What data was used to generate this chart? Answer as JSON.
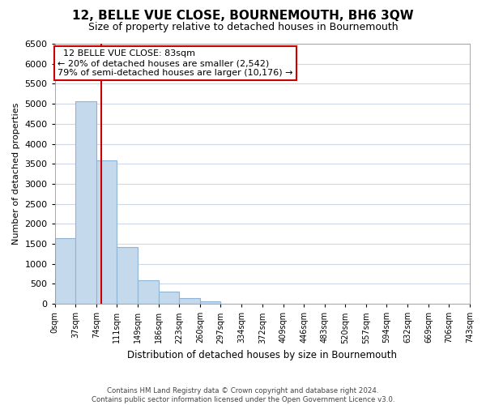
{
  "title": "12, BELLE VUE CLOSE, BOURNEMOUTH, BH6 3QW",
  "subtitle": "Size of property relative to detached houses in Bournemouth",
  "xlabel": "Distribution of detached houses by size in Bournemouth",
  "ylabel": "Number of detached properties",
  "footer_line1": "Contains HM Land Registry data © Crown copyright and database right 2024.",
  "footer_line2": "Contains public sector information licensed under the Open Government Licence v3.0.",
  "bar_edges": [
    0,
    37,
    74,
    111,
    149,
    186,
    223,
    260,
    297,
    334,
    372,
    409,
    446,
    483,
    520,
    557,
    594,
    632,
    669,
    706,
    743
  ],
  "bar_heights": [
    1650,
    5070,
    3580,
    1420,
    590,
    300,
    145,
    60,
    0,
    0,
    0,
    0,
    0,
    0,
    0,
    0,
    0,
    0,
    0,
    0
  ],
  "bar_color": "#c5d9ed",
  "bar_edge_color": "#8fb4d4",
  "grid_color": "#d0d8e8",
  "vline_x": 83,
  "vline_color": "#cc0000",
  "ylim": [
    0,
    6500
  ],
  "yticks": [
    0,
    500,
    1000,
    1500,
    2000,
    2500,
    3000,
    3500,
    4000,
    4500,
    5000,
    5500,
    6000,
    6500
  ],
  "xtick_labels": [
    "0sqm",
    "37sqm",
    "74sqm",
    "111sqm",
    "149sqm",
    "186sqm",
    "223sqm",
    "260sqm",
    "297sqm",
    "334sqm",
    "372sqm",
    "409sqm",
    "446sqm",
    "483sqm",
    "520sqm",
    "557sqm",
    "594sqm",
    "632sqm",
    "669sqm",
    "706sqm",
    "743sqm"
  ],
  "annotation_title": "12 BELLE VUE CLOSE: 83sqm",
  "annotation_line1": "← 20% of detached houses are smaller (2,542)",
  "annotation_line2": "79% of semi-detached houses are larger (10,176) →",
  "annotation_box_color": "#ffffff",
  "annotation_box_edge": "#cc0000",
  "title_fontsize": 11,
  "subtitle_fontsize": 9
}
